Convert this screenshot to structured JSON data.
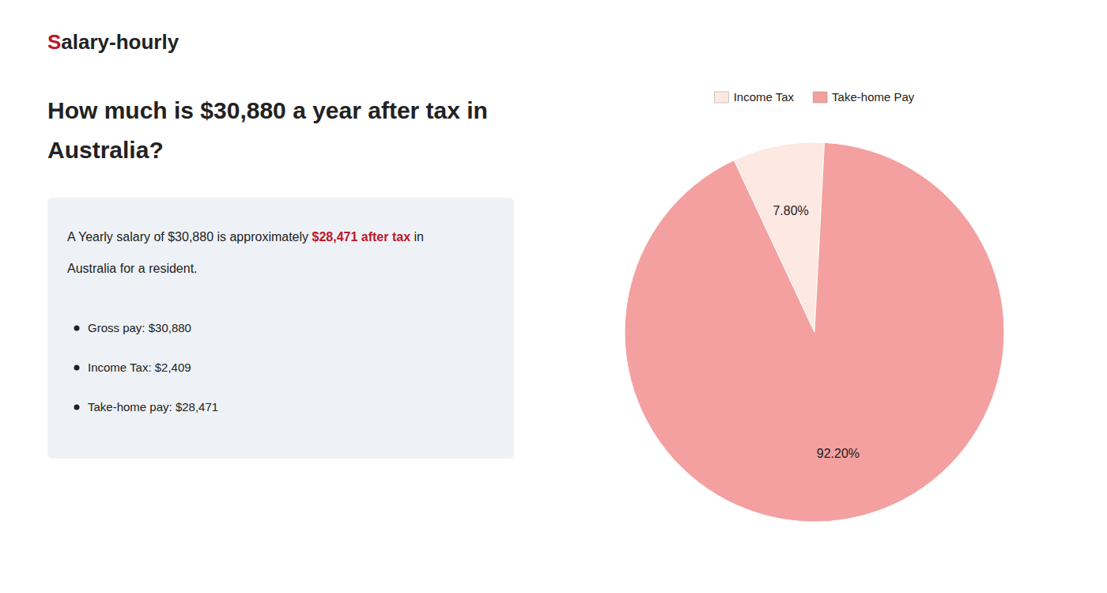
{
  "chart_data": {
    "type": "pie",
    "title": [
      "How much is $30,880 a year after tax in",
      "Australia?"
    ],
    "annotations": [
      {
        "text": "S",
        "color": "#c0152a"
      },
      {
        "text": "alary-hourly"
      },
      {
        "text": "A Yearly salary of $30,880 is approximately "
      },
      {
        "text": "$28,471 after tax",
        "color": "#c0152a"
      },
      {
        "text": " in"
      },
      {
        "text": "Australia for a resident."
      },
      {
        "text": "Gross pay: $30,880"
      },
      {
        "text": "Income Tax: $2,409"
      },
      {
        "text": "Take-home pay: $28,471"
      }
    ],
    "categories": [
      "Income Tax",
      "Take-home Pay"
    ],
    "values": [
      7.8,
      92.2
    ],
    "value_labels": [
      "7.80%",
      "92.20%"
    ],
    "colors": [
      "#fde8e2",
      "#f4a0a0"
    ],
    "data_labels": true,
    "legend": "top"
  }
}
